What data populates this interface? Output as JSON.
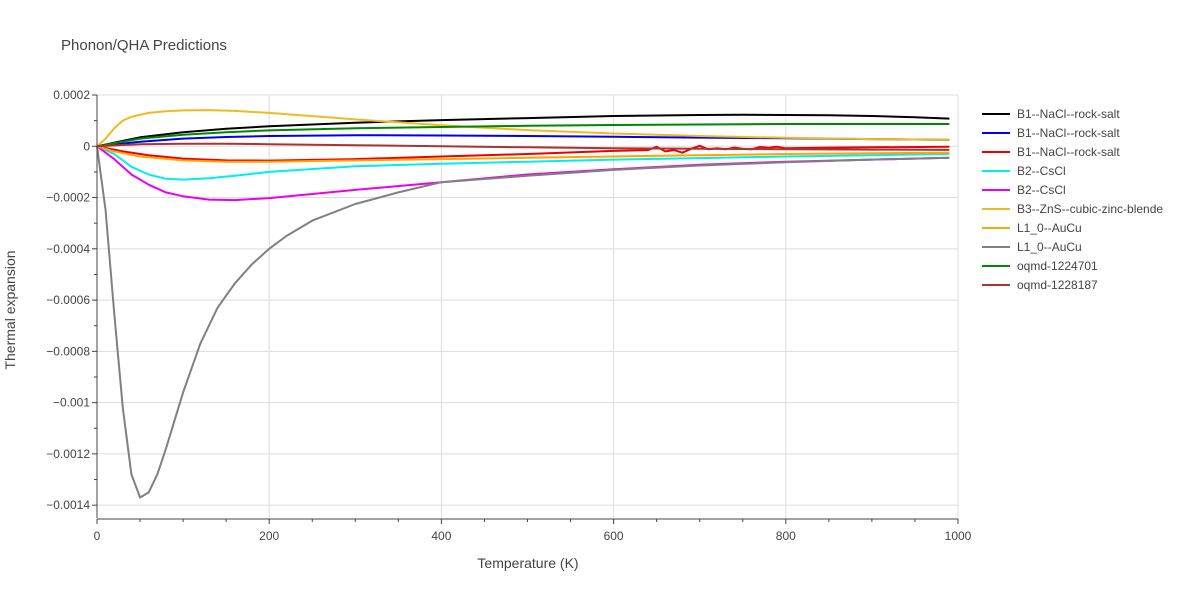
{
  "chart_data": {
    "type": "line",
    "title": "Phonon/QHA Predictions",
    "xlabel": "Temperature (K)",
    "ylabel": "Thermal expansion",
    "xlim": [
      0,
      1000
    ],
    "ylim": [
      -0.00145,
      0.0002
    ],
    "grid": true,
    "legend_position": "right",
    "x_ticks": [
      0,
      200,
      400,
      600,
      800,
      1000
    ],
    "x_tick_labels": [
      "0",
      "200",
      "400",
      "600",
      "800",
      "1000"
    ],
    "y_ticks": [
      0.0002,
      0,
      -0.0002,
      -0.0004,
      -0.0006,
      -0.0008,
      -0.001,
      -0.0012,
      -0.0014
    ],
    "y_tick_labels": [
      "0.0002",
      "0",
      "−0.0002",
      "−0.0004",
      "−0.0006",
      "−0.0008",
      "−0.001",
      "−0.0012",
      "−0.0014"
    ],
    "series": [
      {
        "name": "B1--NaCl--rock-salt",
        "color": "#000000",
        "x": [
          0,
          50,
          100,
          150,
          200,
          300,
          400,
          500,
          600,
          700,
          750,
          800,
          850,
          900,
          950,
          990
        ],
        "y": [
          0,
          3.5e-05,
          5.5e-05,
          6.8e-05,
          7.8e-05,
          9.2e-05,
          0.000102,
          0.00011,
          0.000118,
          0.000122,
          0.000123,
          0.000122,
          0.000121,
          0.000118,
          0.000113,
          0.000108
        ]
      },
      {
        "name": "B1--NaCl--rock-salt",
        "color": "#0000ee",
        "x": [
          0,
          50,
          100,
          150,
          200,
          300,
          400,
          500,
          600,
          700,
          800,
          900,
          990
        ],
        "y": [
          0,
          1.8e-05,
          3e-05,
          3.6e-05,
          4e-05,
          4.3e-05,
          4.2e-05,
          4e-05,
          3.7e-05,
          3.4e-05,
          3.1e-05,
          2.8e-05,
          2.5e-05
        ]
      },
      {
        "name": "B1--NaCl--rock-salt",
        "color": "#ee0000",
        "x": [
          0,
          30,
          60,
          100,
          150,
          200,
          300,
          400,
          500,
          600,
          640,
          650,
          660,
          670,
          680,
          690,
          700,
          710,
          720,
          730,
          740,
          750,
          760,
          770,
          780,
          790,
          800,
          850,
          900,
          990
        ],
        "y": [
          0,
          -2e-05,
          -3.5e-05,
          -4.8e-05,
          -5.5e-05,
          -5.6e-05,
          -5e-05,
          -4e-05,
          -3e-05,
          -1.8e-05,
          -1.5e-05,
          -2e-06,
          -2e-05,
          -1.5e-05,
          -2.5e-05,
          -1e-05,
          2e-06,
          -1.2e-05,
          -8e-06,
          -1.2e-05,
          -5e-06,
          -1e-05,
          -1.2e-05,
          -3e-06,
          -6e-06,
          -2e-06,
          -8e-06,
          -5e-06,
          -4e-06,
          -2e-06
        ]
      },
      {
        "name": "B2--CsCl",
        "color": "#00eeee",
        "x": [
          0,
          20,
          40,
          60,
          80,
          100,
          130,
          160,
          200,
          300,
          400,
          500,
          600,
          700,
          800,
          900,
          990
        ],
        "y": [
          0,
          -3e-05,
          -8e-05,
          -0.00011,
          -0.000127,
          -0.00013,
          -0.000125,
          -0.000115,
          -0.0001,
          -7.8e-05,
          -6.8e-05,
          -6e-05,
          -5.2e-05,
          -4.6e-05,
          -4e-05,
          -3.5e-05,
          -3e-05
        ]
      },
      {
        "name": "B2--CsCl",
        "color": "#ee00ee",
        "x": [
          0,
          20,
          40,
          60,
          80,
          100,
          130,
          160,
          200,
          300,
          400,
          500,
          600,
          700,
          800,
          900,
          990
        ],
        "y": [
          0,
          -5e-05,
          -0.00011,
          -0.00015,
          -0.00018,
          -0.000195,
          -0.000208,
          -0.00021,
          -0.000202,
          -0.00017,
          -0.00014,
          -0.00011,
          -9e-05,
          -7.2e-05,
          -6e-05,
          -5.2e-05,
          -4.5e-05
        ]
      },
      {
        "name": "B3--ZnS--cubic-zinc-blende",
        "color": "#eebb22",
        "x": [
          0,
          10,
          20,
          30,
          40,
          60,
          80,
          100,
          130,
          160,
          200,
          300,
          400,
          500,
          600,
          700,
          800,
          900,
          990
        ],
        "y": [
          0,
          3e-05,
          7e-05,
          0.0001,
          0.000115,
          0.00013,
          0.000137,
          0.00014,
          0.000141,
          0.000138,
          0.00013,
          0.000105,
          8.2e-05,
          6.3e-05,
          5e-05,
          4e-05,
          3.3e-05,
          2.8e-05,
          2.5e-05
        ]
      },
      {
        "name": "L1_0--AuCu",
        "color": "#ffa500",
        "x": [
          0,
          20,
          50,
          100,
          150,
          200,
          300,
          400,
          500,
          600,
          700,
          800,
          900,
          990
        ],
        "y": [
          0,
          -2e-05,
          -4e-05,
          -5.5e-05,
          -6e-05,
          -6e-05,
          -5.5e-05,
          -5e-05,
          -4.5e-05,
          -4e-05,
          -3.5e-05,
          -3e-05,
          -2.7e-05,
          -2.5e-05
        ]
      },
      {
        "name": "L1_0--AuCu",
        "color": "#808080",
        "x": [
          0,
          10,
          20,
          30,
          40,
          50,
          60,
          70,
          80,
          90,
          100,
          120,
          140,
          160,
          180,
          200,
          220,
          250,
          300,
          350,
          400,
          500,
          600,
          700,
          800,
          900,
          990
        ],
        "y": [
          0,
          -0.00025,
          -0.00065,
          -0.00102,
          -0.00128,
          -0.00137,
          -0.00135,
          -0.00128,
          -0.00118,
          -0.00107,
          -0.00096,
          -0.00077,
          -0.00063,
          -0.000535,
          -0.00046,
          -0.0004,
          -0.00035,
          -0.00029,
          -0.000225,
          -0.00018,
          -0.00014,
          -0.000115,
          -9.2e-05,
          -7.5e-05,
          -6.2e-05,
          -5.2e-05,
          -4.5e-05
        ]
      },
      {
        "name": "oqmd-1224701",
        "color": "#008800",
        "x": [
          0,
          50,
          100,
          150,
          200,
          300,
          400,
          500,
          600,
          700,
          800,
          900,
          990
        ],
        "y": [
          0,
          3e-05,
          4.5e-05,
          5.5e-05,
          6.2e-05,
          7e-05,
          7.5e-05,
          8e-05,
          8.3e-05,
          8.5e-05,
          8.7e-05,
          8.7e-05,
          8.7e-05
        ]
      },
      {
        "name": "oqmd-1228187",
        "color": "#aa3333",
        "x": [
          0,
          50,
          100,
          150,
          200,
          300,
          400,
          500,
          600,
          700,
          800,
          900,
          990
        ],
        "y": [
          0,
          8e-06,
          1e-05,
          1e-05,
          8e-06,
          4e-06,
          0,
          -4e-06,
          -8e-06,
          -1e-05,
          -1.2e-05,
          -1.3e-05,
          -1.4e-05
        ]
      }
    ]
  }
}
